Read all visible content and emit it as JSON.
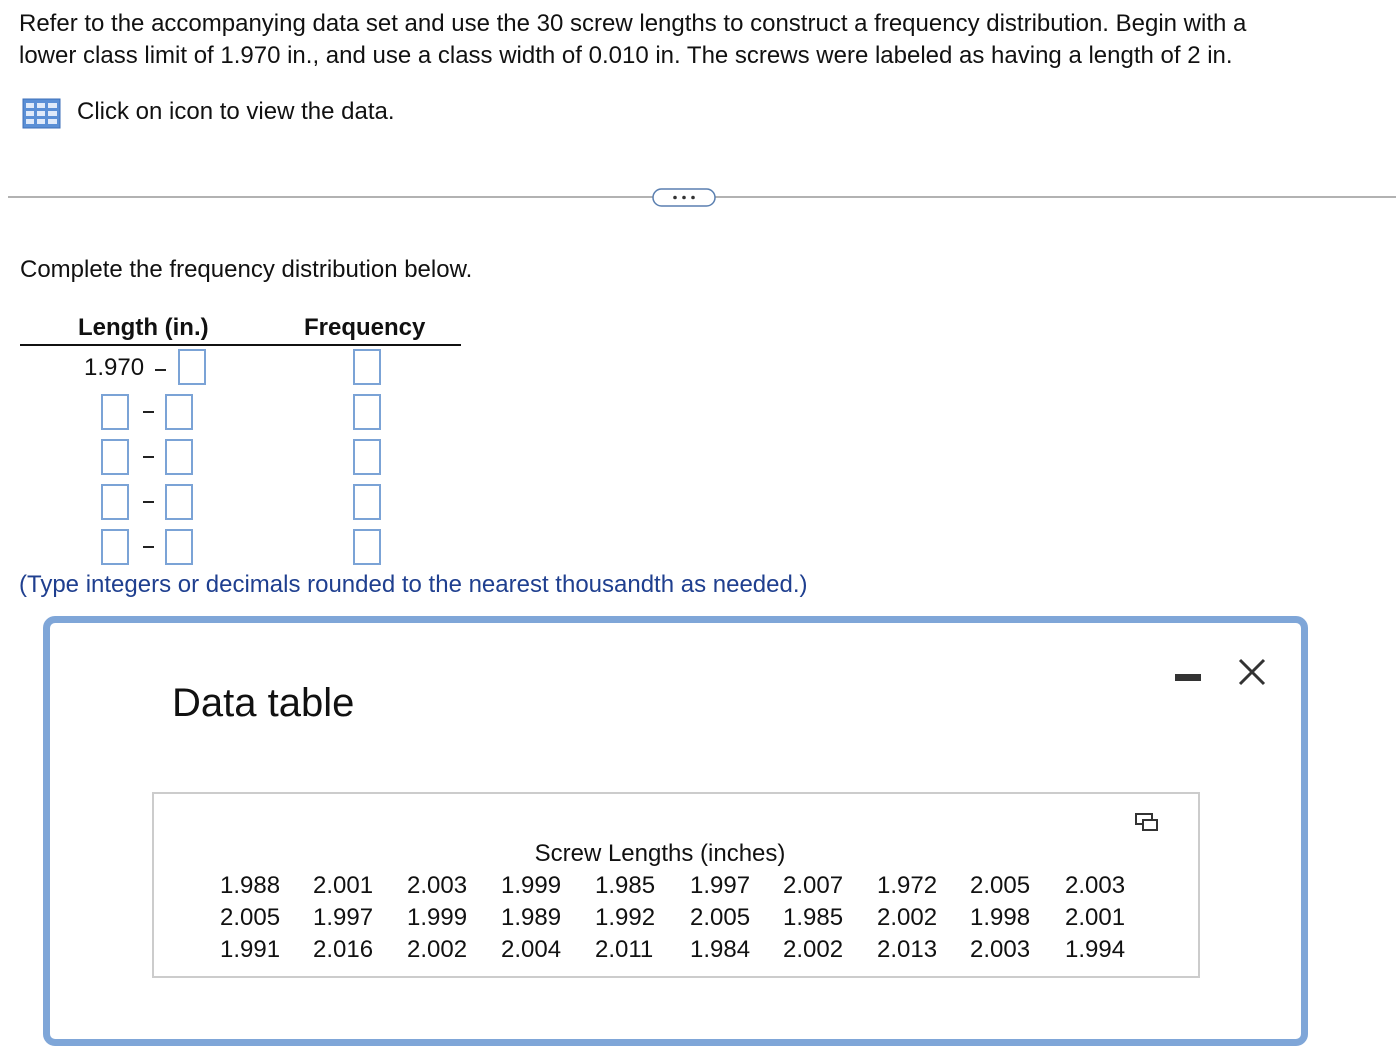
{
  "question": {
    "text_line_1": "Refer to the accompanying data set and use the 30 screw lengths to construct a frequency distribution. Begin with a",
    "text_line_2": "lower class limit of 1.970 in., and use a class width of 0.010 in. The screws were labeled as having a length of 2 in.",
    "link": "Click on icon to view the data."
  },
  "prompt": "Complete the frequency distribution below.",
  "frequency_table": {
    "headers": [
      "Length (in.)",
      "Frequency"
    ],
    "first_lower_limit": "1.970"
  },
  "note": "(Type integers or decimals rounded to the nearest thousandth as needed.)",
  "dialog": {
    "title": "Data table",
    "caption": "Screw Lengths (inches)",
    "rows": [
      [
        "1.988",
        "2.001",
        "2.003",
        "1.999",
        "1.985",
        "1.997",
        "2.007",
        "1.972",
        "2.005",
        "2.003"
      ],
      [
        "2.005",
        "1.997",
        "1.999",
        "1.989",
        "1.992",
        "2.005",
        "1.985",
        "2.002",
        "1.998",
        "2.001"
      ],
      [
        "1.991",
        "2.016",
        "2.002",
        "2.004",
        "2.011",
        "1.984",
        "2.002",
        "2.013",
        "2.003",
        "1.994"
      ]
    ]
  }
}
